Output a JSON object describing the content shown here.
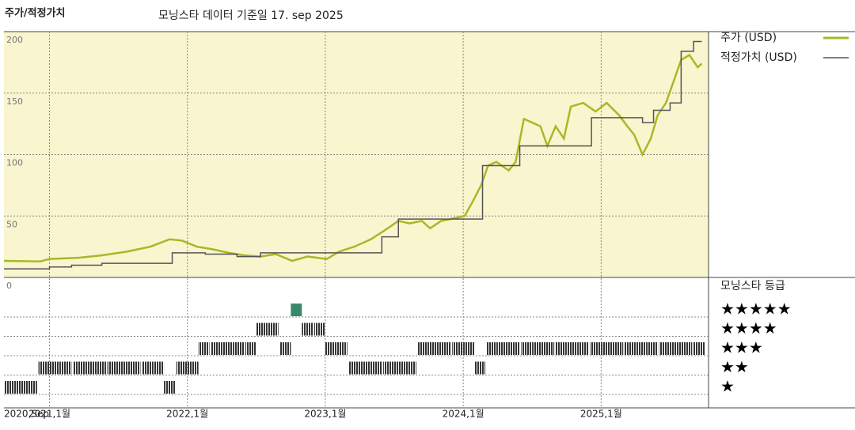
{
  "chart_data": {
    "type": "line",
    "title": "주가/적정가치",
    "subtitle": "모닝스타 데이터 기준일 17. sep 2025",
    "xlim": [
      2020.67,
      2025.75
    ],
    "ylim": [
      0,
      200
    ],
    "yticks": [
      0,
      50,
      100,
      150,
      200
    ],
    "xticks": [
      {
        "value": 2020.67,
        "label": "2020,Sep"
      },
      {
        "value": 2021.0,
        "label": "2021,1월"
      },
      {
        "value": 2022.0,
        "label": "2022,1월"
      },
      {
        "value": 2023.0,
        "label": "2023,1월"
      },
      {
        "value": 2024.0,
        "label": "2024,1월"
      },
      {
        "value": 2025.0,
        "label": "2025,1월"
      }
    ],
    "grid": true,
    "series": [
      {
        "name": "주가 (USD)",
        "color": "#a9b826",
        "step": false,
        "x": [
          2020.67,
          2020.93,
          2021.0,
          2021.21,
          2021.38,
          2021.56,
          2021.73,
          2021.87,
          2021.96,
          2022.07,
          2022.18,
          2022.3,
          2022.41,
          2022.53,
          2022.64,
          2022.76,
          2022.87,
          2023.01,
          2023.1,
          2023.21,
          2023.33,
          2023.44,
          2023.53,
          2023.61,
          2023.7,
          2023.76,
          2023.84,
          2023.93,
          2024.01,
          2024.07,
          2024.13,
          2024.18,
          2024.24,
          2024.33,
          2024.38,
          2024.44,
          2024.5,
          2024.56,
          2024.61,
          2024.67,
          2024.73,
          2024.78,
          2024.87,
          2024.96,
          2025.04,
          2025.13,
          2025.19,
          2025.24,
          2025.3,
          2025.36,
          2025.41,
          2025.47,
          2025.53,
          2025.58,
          2025.64,
          2025.7,
          2025.73
        ],
        "values": [
          13.5,
          13,
          15,
          16,
          18,
          21,
          25,
          31,
          30,
          25,
          23,
          20,
          18,
          17,
          19,
          13.5,
          17,
          15,
          21,
          25,
          31,
          39,
          46,
          44,
          46,
          40,
          46,
          48,
          50,
          62,
          75,
          91,
          94,
          87,
          94,
          129,
          126,
          123,
          107,
          123,
          113,
          139,
          142,
          135,
          142,
          132,
          123,
          116,
          100,
          113,
          132,
          142,
          161,
          177,
          181,
          171,
          174
        ]
      },
      {
        "name": "적정가치 (USD)",
        "color": "#555555",
        "step": true,
        "x": [
          2020.67,
          2021.0,
          2021.16,
          2021.38,
          2021.89,
          2022.13,
          2022.36,
          2022.53,
          2023.41,
          2023.53,
          2024.14,
          2024.41,
          2024.93,
          2025.3,
          2025.38,
          2025.5,
          2025.58,
          2025.67,
          2025.73
        ],
        "values": [
          7,
          8.5,
          10,
          11.5,
          20,
          19,
          17,
          20,
          33,
          47.5,
          91,
          107,
          130,
          126,
          136,
          142,
          184,
          192,
          192
        ]
      }
    ],
    "rating_title": "모닝스타 등급",
    "rating_labels": [
      "★",
      "★★",
      "★★★",
      "★★★★",
      "★★★★★"
    ],
    "ratings": {
      "x": [
        2020.67,
        2020.75,
        2020.83,
        2020.92,
        2021.0,
        2021.08,
        2021.17,
        2021.25,
        2021.33,
        2021.42,
        2021.5,
        2021.58,
        2021.67,
        2021.75,
        2021.83,
        2021.92,
        2022.0,
        2022.08,
        2022.17,
        2022.25,
        2022.33,
        2022.42,
        2022.5,
        2022.58,
        2022.67,
        2022.75,
        2022.83,
        2022.92,
        2023.0,
        2023.08,
        2023.17,
        2023.25,
        2023.33,
        2023.42,
        2023.5,
        2023.58,
        2023.67,
        2023.75,
        2023.83,
        2023.92,
        2024.0,
        2024.08,
        2024.17,
        2024.25,
        2024.33,
        2024.42,
        2024.5,
        2024.58,
        2024.67,
        2024.75,
        2024.83,
        2024.92,
        2025.0,
        2025.08,
        2025.17,
        2025.25,
        2025.33,
        2025.42,
        2025.5,
        2025.58,
        2025.67
      ],
      "values": [
        1,
        1,
        1,
        2,
        2,
        2,
        2,
        2,
        2,
        2,
        2,
        2,
        2,
        2,
        1,
        2,
        2,
        3,
        3,
        3,
        3,
        3,
        4,
        4,
        3,
        5,
        4,
        4,
        3,
        3,
        2,
        2,
        2,
        2,
        2,
        2,
        3,
        3,
        3,
        3,
        3,
        2,
        3,
        3,
        3,
        3,
        3,
        3,
        3,
        3,
        3,
        3,
        3,
        3,
        3,
        3,
        3,
        3,
        3,
        3,
        3
      ]
    }
  }
}
